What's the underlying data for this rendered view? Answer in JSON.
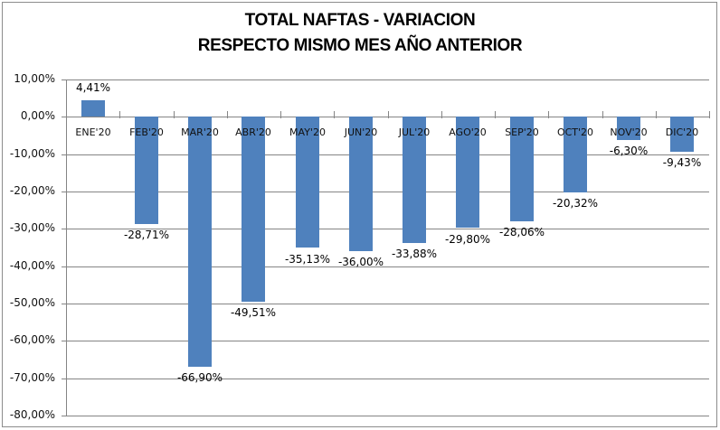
{
  "title": {
    "line1": "TOTAL NAFTAS - VARIACION",
    "line2": "RESPECTO MISMO MES AÑO ANTERIOR"
  },
  "chart_data": {
    "type": "bar",
    "title": "TOTAL NAFTAS - VARIACION RESPECTO MISMO MES AÑO ANTERIOR",
    "categories": [
      "ENE'20",
      "FEB'20",
      "MAR'20",
      "ABR'20",
      "MAY'20",
      "JUN'20",
      "JUL'20",
      "AGO'20",
      "SEP'20",
      "OCT'20",
      "NOV'20",
      "DIC'20"
    ],
    "values": [
      4.41,
      -28.71,
      -66.9,
      -49.51,
      -35.13,
      -36.0,
      -33.88,
      -29.8,
      -28.06,
      -20.32,
      -6.3,
      -9.43
    ],
    "value_labels": [
      "4,41%",
      "-28,71%",
      "-66,90%",
      "-49,51%",
      "-35,13%",
      "-36,00%",
      "-33,88%",
      "-29,80%",
      "-28,06%",
      "-20,32%",
      "-6,30%",
      "-9,43%"
    ],
    "xlabel": "",
    "ylabel": "",
    "ylim": [
      -80,
      10
    ],
    "ytick_step": 10,
    "yticks": [
      10,
      0,
      -10,
      -20,
      -30,
      -40,
      -50,
      -60,
      -70,
      -80
    ],
    "ytick_labels": [
      "10,00%",
      "0,00%",
      "-10,00%",
      "-20,00%",
      "-30,00%",
      "-40,00%",
      "-50,00%",
      "-60,00%",
      "-70,00%",
      "-80,00%"
    ],
    "grid": true,
    "legend": false,
    "bar_color": "#4F81BD",
    "gridline_color": "#858585",
    "axis_color": "#858585",
    "text_color": "#000000"
  }
}
